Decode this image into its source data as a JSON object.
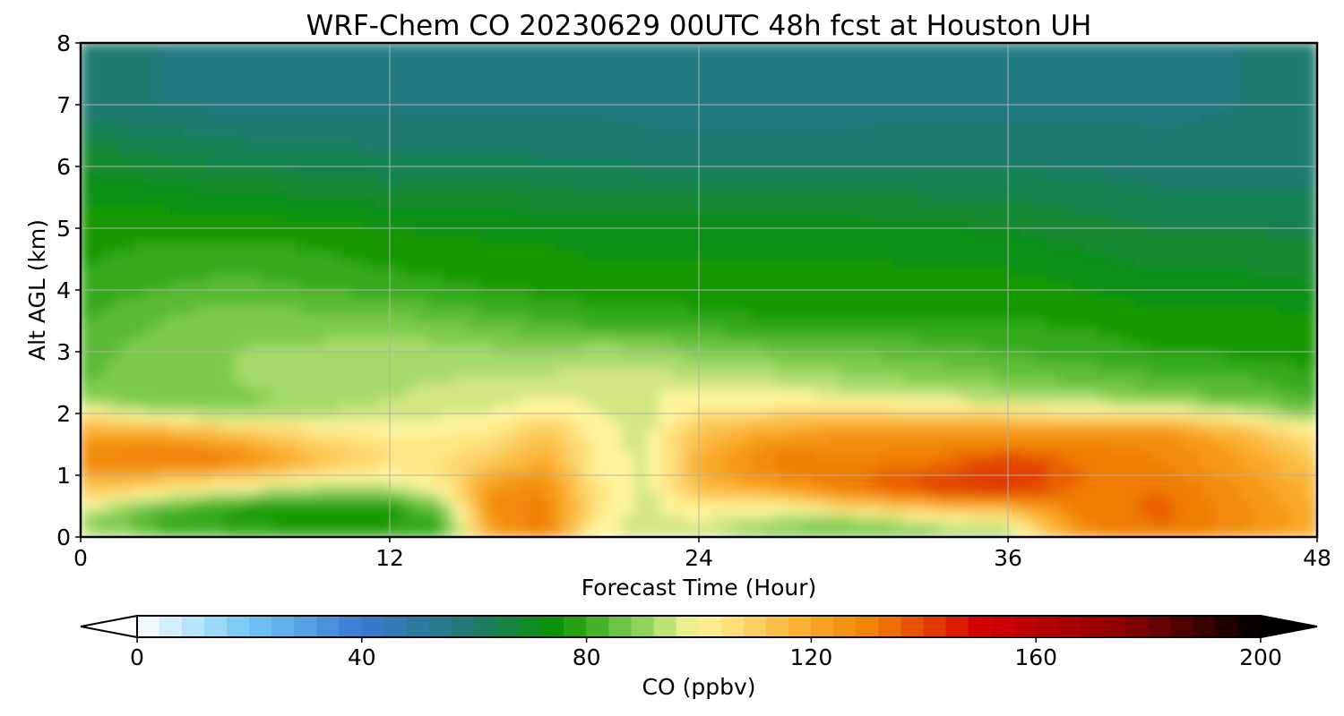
{
  "chart_data": {
    "type": "heatmap",
    "title": "WRF-Chem CO  20230629 00UTC 48h fcst at Houston UH",
    "xlabel": "Forecast Time (Hour)",
    "ylabel": "Alt AGL (km)",
    "xlim": [
      0,
      48
    ],
    "ylim": [
      0,
      8
    ],
    "x_ticks": [
      0,
      12,
      24,
      36,
      48
    ],
    "y_ticks": [
      0,
      1,
      2,
      3,
      4,
      5,
      6,
      7,
      8
    ],
    "grid": true,
    "colorbar": {
      "label": "CO  (ppbv)",
      "range": [
        0,
        200
      ],
      "ticks": [
        0,
        40,
        80,
        120,
        160,
        200
      ],
      "extend": "both",
      "colors": [
        [
          0,
          "#ffffff"
        ],
        [
          20,
          "#6ec8f5"
        ],
        [
          40,
          "#3a7ad1"
        ],
        [
          60,
          "#1f7a6e"
        ],
        [
          75,
          "#0a9500"
        ],
        [
          90,
          "#8fd35a"
        ],
        [
          100,
          "#fff59c"
        ],
        [
          120,
          "#f9a826"
        ],
        [
          132,
          "#ef7d00"
        ],
        [
          150,
          "#d50000"
        ],
        [
          175,
          "#8f0000"
        ],
        [
          200,
          "#000000"
        ]
      ]
    },
    "y_levels": [
      0,
      0.25,
      0.5,
      0.75,
      1.0,
      1.25,
      1.5,
      1.75,
      2.0,
      2.25,
      2.5,
      3.0,
      3.5,
      4.0,
      5.0,
      6.0,
      7.0,
      8.0
    ],
    "x_hours": [
      0,
      3,
      6,
      9,
      12,
      14,
      16,
      18,
      20,
      22,
      24,
      27,
      30,
      33,
      36,
      39,
      42,
      45,
      48
    ],
    "values": [
      [
        98,
        88,
        82,
        80,
        80,
        83,
        122,
        130,
        100,
        95,
        96,
        88,
        85,
        88,
        92,
        128,
        132,
        126,
        118
      ],
      [
        90,
        80,
        77,
        77,
        77,
        80,
        126,
        132,
        102,
        95,
        97,
        92,
        88,
        95,
        100,
        130,
        135,
        128,
        120
      ],
      [
        100,
        86,
        78,
        76,
        76,
        88,
        128,
        132,
        104,
        96,
        104,
        100,
        110,
        115,
        118,
        132,
        135,
        128,
        118
      ],
      [
        112,
        104,
        96,
        90,
        92,
        100,
        126,
        128,
        104,
        96,
        112,
        120,
        130,
        140,
        145,
        132,
        134,
        126,
        116
      ],
      [
        120,
        118,
        112,
        104,
        100,
        104,
        120,
        124,
        103,
        96,
        118,
        128,
        134,
        138,
        142,
        134,
        132,
        124,
        114
      ],
      [
        128,
        134,
        132,
        116,
        106,
        106,
        110,
        120,
        102,
        96,
        118,
        132,
        130,
        132,
        142,
        132,
        130,
        122,
        112
      ],
      [
        126,
        128,
        122,
        110,
        104,
        104,
        106,
        116,
        101,
        96,
        116,
        126,
        128,
        128,
        130,
        130,
        128,
        120,
        108
      ],
      [
        118,
        116,
        110,
        104,
        100,
        101,
        102,
        112,
        100,
        96,
        112,
        120,
        122,
        122,
        122,
        124,
        124,
        114,
        100
      ],
      [
        106,
        94,
        92,
        94,
        95,
        97,
        98,
        104,
        98,
        96,
        104,
        108,
        110,
        108,
        106,
        104,
        104,
        96,
        88
      ],
      [
        88,
        86,
        88,
        92,
        94,
        96,
        96,
        98,
        97,
        98,
        100,
        100,
        99,
        96,
        94,
        92,
        88,
        86,
        82
      ],
      [
        86,
        88,
        90,
        92,
        93,
        94,
        95,
        96,
        96,
        97,
        96,
        95,
        92,
        90,
        88,
        86,
        84,
        83,
        80
      ],
      [
        84,
        88,
        90,
        91,
        92,
        92,
        91,
        90,
        92,
        91,
        88,
        87,
        86,
        84,
        82,
        80,
        78,
        77,
        76
      ],
      [
        82,
        86,
        89,
        88,
        88,
        86,
        84,
        82,
        80,
        80,
        79,
        78,
        78,
        78,
        78,
        77,
        76,
        76,
        75
      ],
      [
        79,
        82,
        84,
        82,
        80,
        79,
        78,
        77,
        76,
        76,
        76,
        76,
        76,
        76,
        76,
        74,
        72,
        72,
        71
      ],
      [
        76,
        77,
        76,
        76,
        74,
        73,
        73,
        73,
        72,
        72,
        72,
        72,
        72,
        71,
        70,
        68,
        66,
        66,
        65
      ],
      [
        70,
        68,
        66,
        65,
        64,
        64,
        64,
        63,
        63,
        62,
        62,
        62,
        62,
        62,
        62,
        61,
        60,
        60,
        60
      ],
      [
        60,
        58,
        57,
        57,
        57,
        57,
        57,
        57,
        57,
        56,
        56,
        56,
        56,
        57,
        57,
        57,
        57,
        58,
        59
      ],
      [
        62,
        58,
        56,
        56,
        56,
        56,
        57,
        57,
        57,
        57,
        57,
        57,
        57,
        57,
        58,
        58,
        57,
        58,
        62
      ]
    ]
  }
}
